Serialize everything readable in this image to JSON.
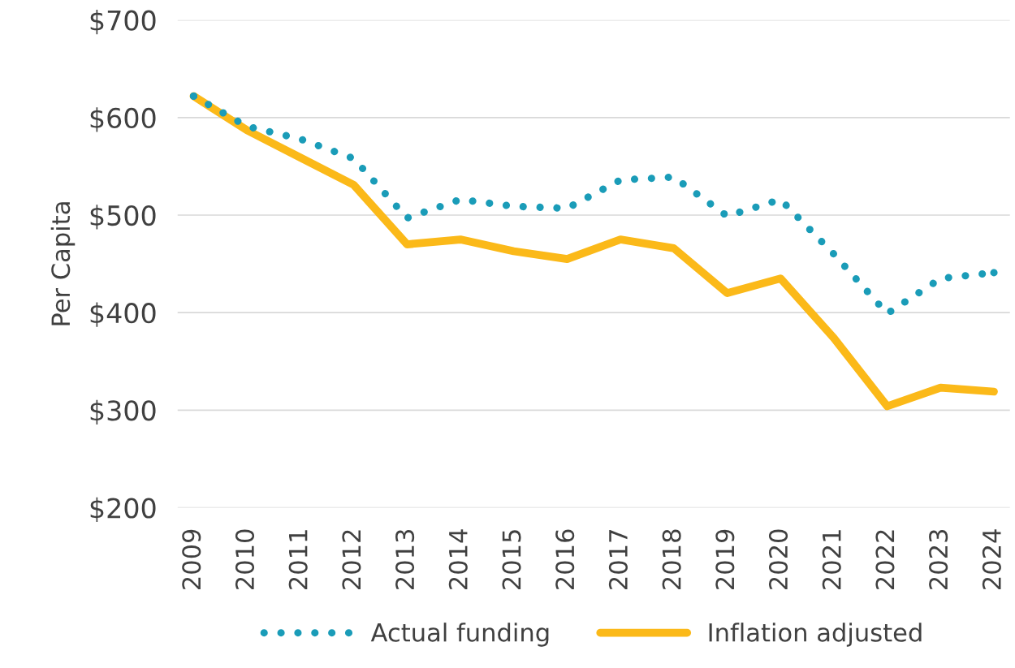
{
  "chart_data": {
    "type": "line",
    "ylabel": "Per Capita",
    "categories": [
      "2009",
      "2010",
      "2011",
      "2012",
      "2013",
      "2014",
      "2015",
      "2016",
      "2017",
      "2018",
      "2019",
      "2020",
      "2021",
      "2022",
      "2023",
      "2024"
    ],
    "series": [
      {
        "name": "Actual funding",
        "color": "#1a9cb8",
        "line_style": "dotted",
        "values": [
          622,
          591,
          578,
          558,
          497,
          516,
          509,
          507,
          536,
          539,
          499,
          516,
          460,
          399,
          435,
          441
        ]
      },
      {
        "name": "Inflation adjusted",
        "color": "#fbb919",
        "line_style": "solid",
        "values": [
          622,
          587,
          559,
          531,
          470,
          475,
          463,
          455,
          475,
          466,
          420,
          435,
          374,
          304,
          323,
          319
        ]
      }
    ],
    "ylim": [
      200,
      700
    ],
    "yticks": [
      {
        "value": 200,
        "label": "$200"
      },
      {
        "value": 300,
        "label": "$300"
      },
      {
        "value": 400,
        "label": "$400"
      },
      {
        "value": 500,
        "label": "$500"
      },
      {
        "value": 600,
        "label": "$600"
      },
      {
        "value": 700,
        "label": "$700"
      }
    ],
    "grid": "y",
    "legend": "bottom",
    "marker": "none"
  }
}
